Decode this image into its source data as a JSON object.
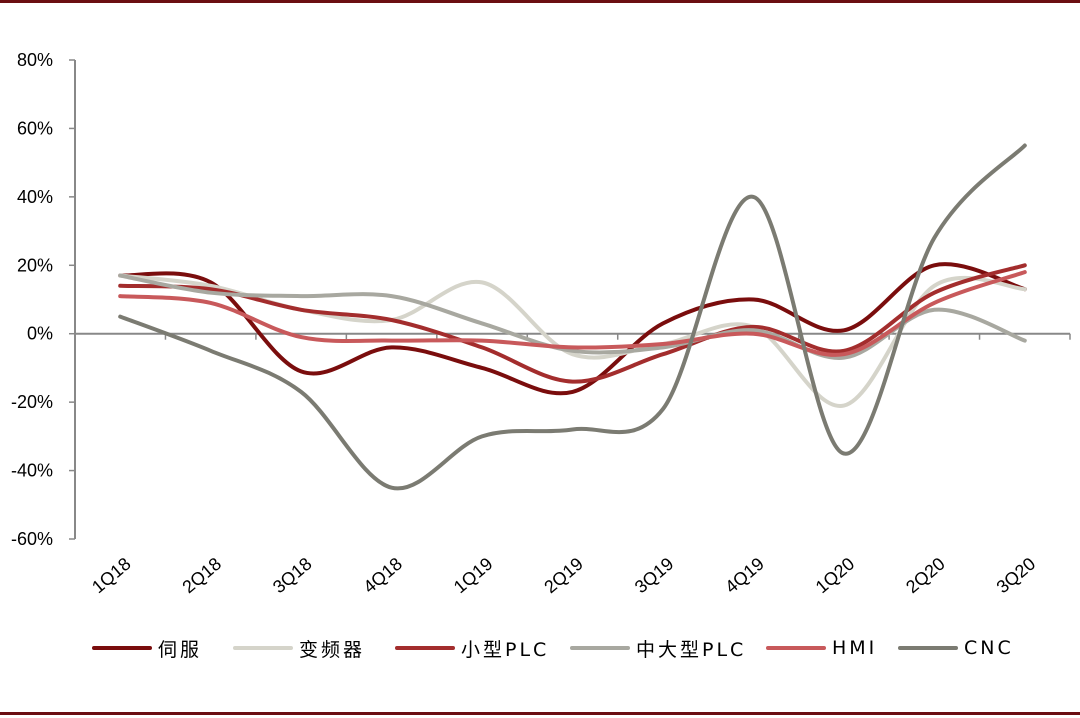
{
  "chart_data": {
    "type": "line",
    "title": "",
    "xlabel": "",
    "ylabel": "",
    "x": [
      "1Q18",
      "2Q18",
      "3Q18",
      "4Q18",
      "1Q19",
      "2Q19",
      "3Q19",
      "4Q19",
      "1Q20",
      "2Q20",
      "3Q20"
    ],
    "ylim": [
      -60,
      80
    ],
    "yticks": [
      -60,
      -40,
      -20,
      0,
      20,
      40,
      60,
      80
    ],
    "ytick_labels": [
      "-60%",
      "-40%",
      "-20%",
      "0%",
      "20%",
      "40%",
      "60%",
      "80%"
    ],
    "grid": false,
    "legend_position": "bottom",
    "series": [
      {
        "name": "伺服",
        "color": "#7a0d0d",
        "values": [
          17,
          15,
          -11,
          -4,
          -10,
          -17,
          3,
          10,
          1,
          20,
          13
        ]
      },
      {
        "name": "变频器",
        "color": "#d5d4ca",
        "values": [
          17,
          14,
          7,
          4,
          15,
          -6,
          -3,
          2,
          -21,
          14,
          13
        ]
      },
      {
        "name": "小型PLC",
        "color": "#a32d2d",
        "values": [
          14,
          13,
          7,
          4,
          -4,
          -14,
          -6,
          2,
          -5,
          12,
          20
        ]
      },
      {
        "name": "中大型PLC",
        "color": "#a8a8a0",
        "values": [
          17,
          12,
          11,
          11,
          3,
          -5,
          -4,
          1,
          -7,
          7,
          -2
        ]
      },
      {
        "name": "HMI",
        "color": "#c8595b",
        "values": [
          11,
          9,
          -1,
          -2,
          -2,
          -4,
          -3,
          0,
          -6,
          9,
          18
        ]
      },
      {
        "name": "CNC",
        "color": "#7b7b72",
        "values": [
          5,
          -5,
          -17,
          -45,
          -30,
          -28,
          -22,
          40,
          -35,
          28,
          55
        ]
      }
    ]
  }
}
